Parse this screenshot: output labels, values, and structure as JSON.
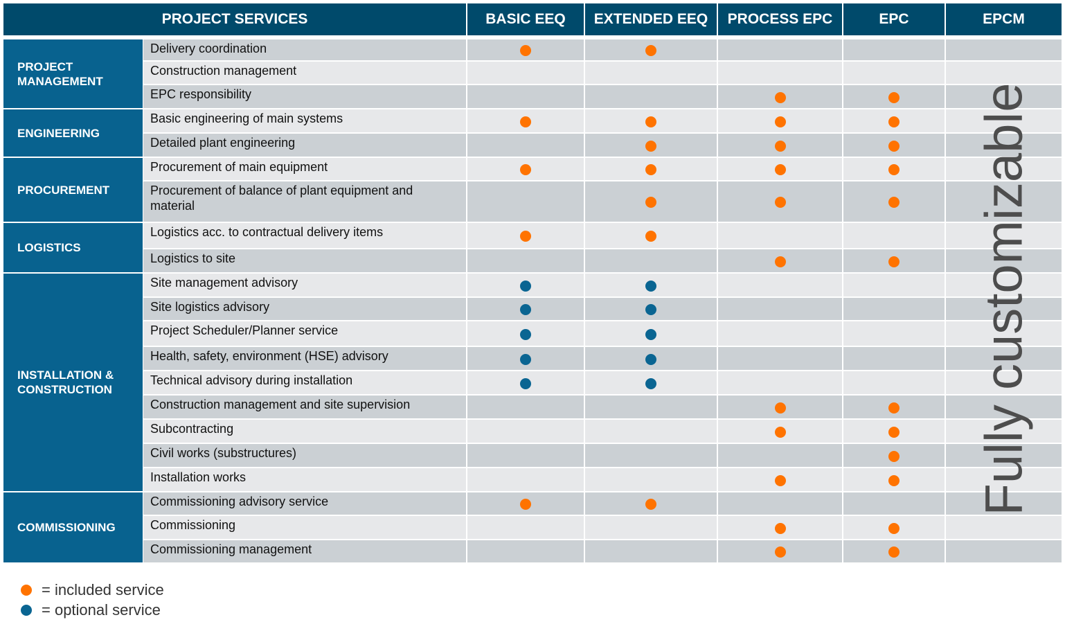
{
  "header": {
    "services": "PROJECT SERVICES",
    "columns": [
      "BASIC EEQ",
      "EXTENDED EEQ",
      "PROCESS EPC",
      "EPC",
      "EPCM"
    ]
  },
  "epcm_note": "Fully customizable",
  "colors": {
    "included": "#ff7300",
    "optional": "#0a6592",
    "header": "#004a6b",
    "category": "#08628f"
  },
  "categories": [
    {
      "label": "PROJECT MANAGEMENT",
      "rows": [
        0,
        2
      ]
    },
    {
      "label": "ENGINEERING",
      "rows": [
        3,
        4
      ]
    },
    {
      "label": "PROCUREMENT",
      "rows": [
        5,
        6
      ]
    },
    {
      "label": "LOGISTICS",
      "rows": [
        7,
        8
      ]
    },
    {
      "label": "INSTALLATION & CONSTRUCTION",
      "rows": [
        9,
        17
      ]
    },
    {
      "label": "COMMISSIONING",
      "rows": [
        18,
        20
      ]
    }
  ],
  "rows": [
    {
      "service": "Delivery coordination",
      "marks": [
        "included",
        "included",
        "",
        ""
      ]
    },
    {
      "service": "Construction management",
      "marks": [
        "",
        "",
        "",
        ""
      ]
    },
    {
      "service": "EPC responsibility",
      "marks": [
        "",
        "",
        "included",
        "included"
      ]
    },
    {
      "service": "Basic engineering of main systems",
      "marks": [
        "included",
        "included",
        "included",
        "included"
      ]
    },
    {
      "service": "Detailed plant engineering",
      "marks": [
        "",
        "included",
        "included",
        "included"
      ]
    },
    {
      "service": "Procurement of main equipment",
      "marks": [
        "included",
        "included",
        "included",
        "included"
      ]
    },
    {
      "service": "Procurement of balance of plant equipment and material",
      "marks": [
        "",
        "included",
        "included",
        "included"
      ]
    },
    {
      "service": "Logistics acc. to contractual delivery items",
      "marks": [
        "included",
        "included",
        "",
        ""
      ]
    },
    {
      "service": "Logistics to site",
      "marks": [
        "",
        "",
        "included",
        "included"
      ]
    },
    {
      "service": "Site management advisory",
      "marks": [
        "optional",
        "optional",
        "",
        ""
      ]
    },
    {
      "service": "Site logistics advisory",
      "marks": [
        "optional",
        "optional",
        "",
        ""
      ]
    },
    {
      "service": "Project Scheduler/Planner service",
      "marks": [
        "optional",
        "optional",
        "",
        ""
      ]
    },
    {
      "service": "Health, safety, environment (HSE) advisory",
      "marks": [
        "optional",
        "optional",
        "",
        ""
      ]
    },
    {
      "service": "Technical advisory during installation",
      "marks": [
        "optional",
        "optional",
        "",
        ""
      ]
    },
    {
      "service": "Construction management and site supervision",
      "marks": [
        "",
        "",
        "included",
        "included"
      ]
    },
    {
      "service": "Subcontracting",
      "marks": [
        "",
        "",
        "included",
        "included"
      ]
    },
    {
      "service": "Civil works (substructures)",
      "marks": [
        "",
        "",
        "",
        "included"
      ]
    },
    {
      "service": "Installation works",
      "marks": [
        "",
        "",
        "included",
        "included"
      ]
    },
    {
      "service": "Commissioning advisory service",
      "marks": [
        "included",
        "included",
        "",
        ""
      ]
    },
    {
      "service": "Commissioning",
      "marks": [
        "",
        "",
        "included",
        "included"
      ]
    },
    {
      "service": "Commissioning management",
      "marks": [
        "",
        "",
        "included",
        "included"
      ]
    }
  ],
  "legend": [
    {
      "type": "included",
      "label": "= included service"
    },
    {
      "type": "optional",
      "label": "= optional service"
    }
  ]
}
